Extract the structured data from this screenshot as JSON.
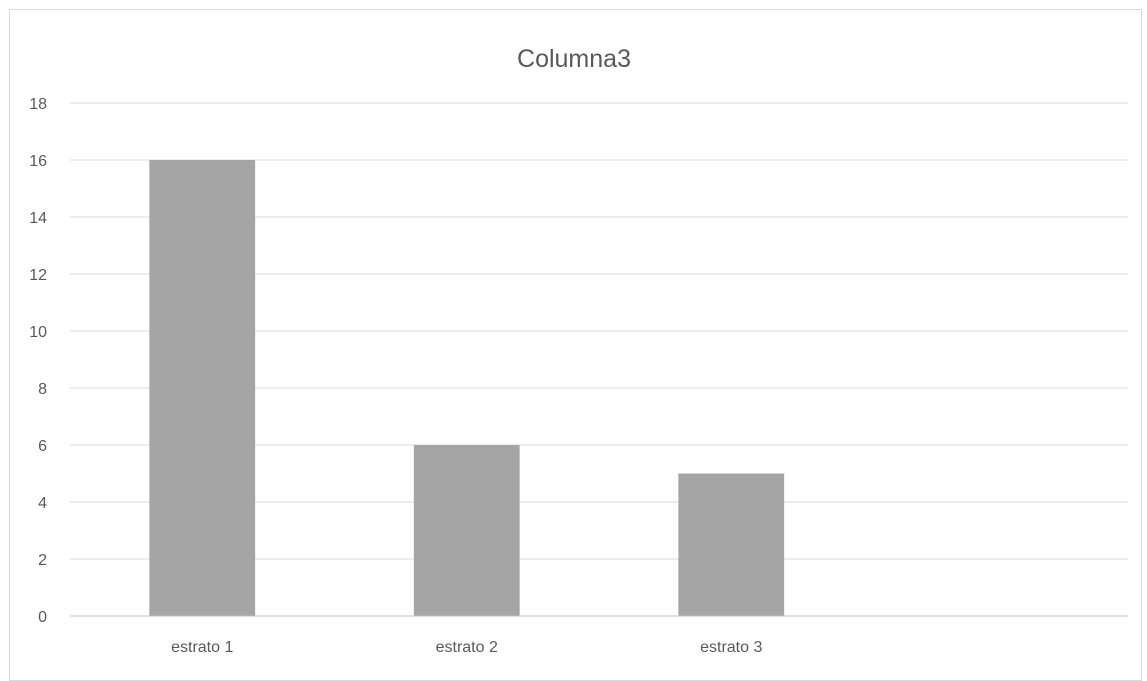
{
  "chart_data": {
    "type": "bar",
    "title": "Columna3",
    "categories": [
      "estrato 1",
      "estrato 2",
      "estrato 3",
      ""
    ],
    "series": [
      {
        "values": [
          16,
          6,
          5,
          null
        ]
      }
    ],
    "ylim": [
      0,
      18
    ],
    "yticks": [
      0,
      2,
      4,
      6,
      8,
      10,
      12,
      14,
      16,
      18
    ],
    "grid": true,
    "legend": "none",
    "bar_color": "#a5a5a5"
  }
}
